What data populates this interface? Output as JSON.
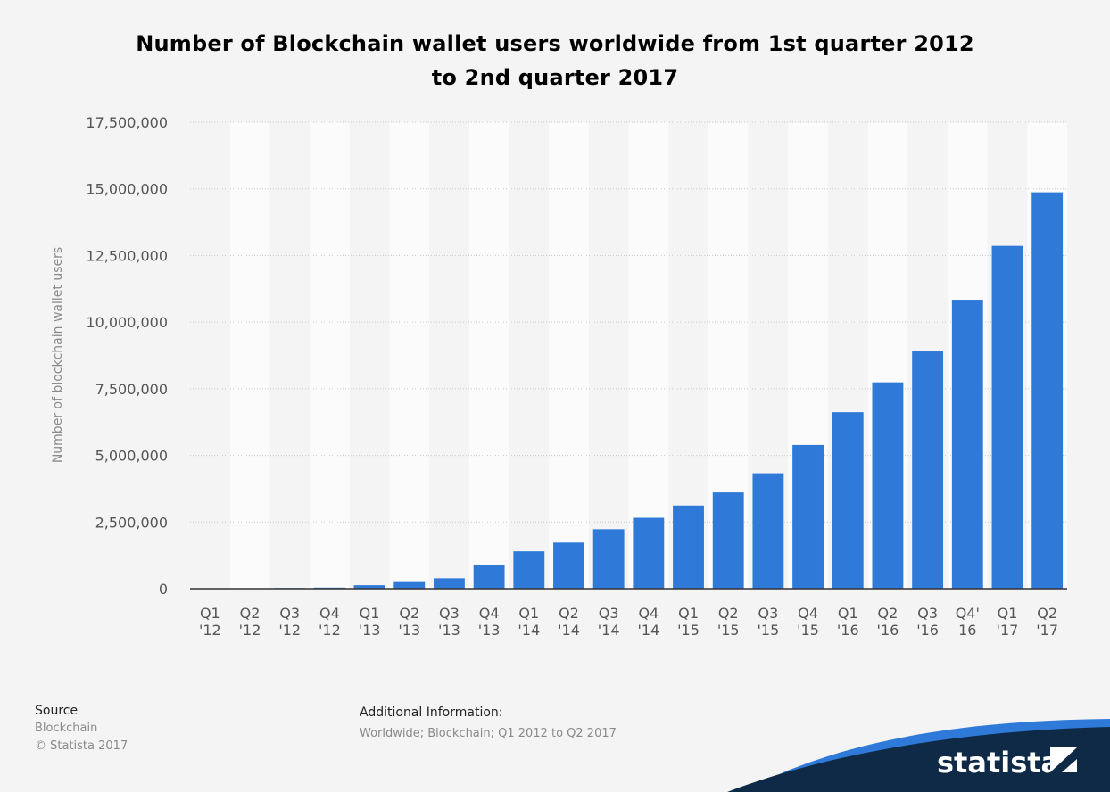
{
  "title_line1": "Number of Blockchain wallet users worldwide from 1st quarter 2012",
  "title_line2": "to 2nd quarter 2017",
  "colors": {
    "bar": "#2f7ad9",
    "background": "#f4f4f4",
    "stripe": "#fbfbfb",
    "axis_text": "#555555",
    "brand_dark": "#0e2a47",
    "brand_blue": "#2f7ad9"
  },
  "chart_data": {
    "type": "bar",
    "ylabel": "Number of blockchain wallet users",
    "xlabel": "",
    "ylim": [
      0,
      17500000
    ],
    "yticks": [
      0,
      2500000,
      5000000,
      7500000,
      10000000,
      12500000,
      15000000,
      17500000
    ],
    "ytick_labels": [
      "0",
      "2,500,000",
      "5,000,000",
      "7,500,000",
      "10,000,000",
      "12,500,000",
      "15,000,000",
      "17,500,000"
    ],
    "grid": true,
    "categories": [
      [
        "Q1",
        "'12"
      ],
      [
        "Q2",
        "'12"
      ],
      [
        "Q3",
        "'12"
      ],
      [
        "Q4",
        "'12"
      ],
      [
        "Q1",
        "'13"
      ],
      [
        "Q2",
        "'13"
      ],
      [
        "Q3",
        "'13"
      ],
      [
        "Q4",
        "'13"
      ],
      [
        "Q1",
        "'14"
      ],
      [
        "Q2",
        "'14"
      ],
      [
        "Q3",
        "'14"
      ],
      [
        "Q4",
        "'14"
      ],
      [
        "Q1",
        "'15"
      ],
      [
        "Q2",
        "'15"
      ],
      [
        "Q3",
        "'15"
      ],
      [
        "Q4",
        "'15"
      ],
      [
        "Q1",
        "'16"
      ],
      [
        "Q2",
        "'16"
      ],
      [
        "Q3",
        "'16"
      ],
      [
        "Q4'",
        "16"
      ],
      [
        "Q1",
        "'17"
      ],
      [
        "Q2",
        "'17"
      ]
    ],
    "values": [
      9000,
      15000,
      25000,
      40000,
      130000,
      280000,
      390000,
      900000,
      1400000,
      1730000,
      2230000,
      2660000,
      3120000,
      3610000,
      4330000,
      5390000,
      6620000,
      7740000,
      8900000,
      10840000,
      12860000,
      14870000
    ]
  },
  "source": {
    "heading": "Source",
    "line1": "Blockchain",
    "line2": "© Statista 2017"
  },
  "additional": {
    "heading": "Additional Information:",
    "text": "Worldwide; Blockchain; Q1 2012 to Q2 2017"
  },
  "brand": {
    "name": "statista"
  }
}
